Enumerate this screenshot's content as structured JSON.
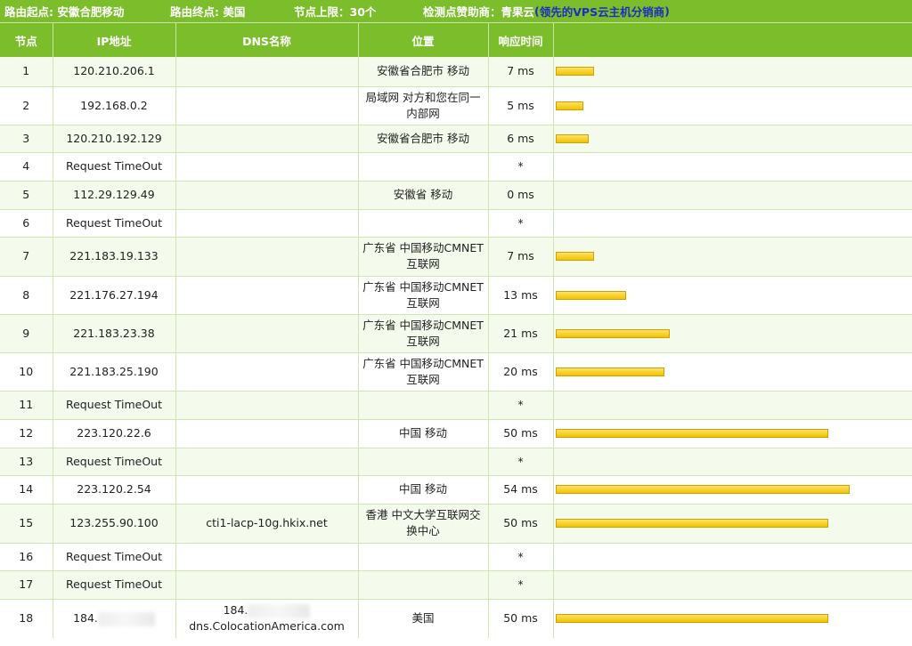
{
  "header_bar": {
    "origin": "路由起点: 安徽合肥移动",
    "destination": "路由终点: 美国",
    "hop_limit": "节点上限：30个",
    "sponsor_prefix": "检测点赞助商：",
    "sponsor_name": "青果云",
    "sponsor_open": "(",
    "sponsor_link": "领先的VPS云主机分销商",
    "sponsor_close": ")"
  },
  "columns": [
    "节点",
    "IP地址",
    "DNS名称",
    "位置",
    "响应时间",
    ""
  ],
  "colors": {
    "header_green": "#7bbd2a",
    "bar_yellow": "#f2c200",
    "link_blue": "#1a2fbf"
  },
  "max_bar_ms": 54,
  "rows": [
    {
      "hop": "1",
      "ip": "120.210.206.1",
      "dns": "",
      "location": "安徽省合肥市 移动",
      "time": "7 ms",
      "ms": 7,
      "h": 33
    },
    {
      "hop": "2",
      "ip": "192.168.0.2",
      "dns": "",
      "location": "局域网 对方和您在同一内部网",
      "time": "5 ms",
      "ms": 5,
      "h": 43
    },
    {
      "hop": "3",
      "ip": "120.210.192.129",
      "dns": "",
      "location": "安徽省合肥市 移动",
      "time": "6 ms",
      "ms": 6,
      "h": 31
    },
    {
      "hop": "4",
      "ip": "Request TimeOut",
      "dns": "",
      "location": "",
      "time": "*",
      "ms": 0,
      "h": 32
    },
    {
      "hop": "5",
      "ip": "112.29.129.49",
      "dns": "",
      "location": "安徽省 移动",
      "time": "0 ms",
      "ms": 0,
      "h": 32
    },
    {
      "hop": "6",
      "ip": "Request TimeOut",
      "dns": "",
      "location": "",
      "time": "*",
      "ms": 0,
      "h": 31
    },
    {
      "hop": "7",
      "ip": "221.183.19.133",
      "dns": "",
      "location": "广东省 中国移动CMNET互联网",
      "time": "7 ms",
      "ms": 7,
      "h": 44
    },
    {
      "hop": "8",
      "ip": "221.176.27.194",
      "dns": "",
      "location": "广东省 中国移动CMNET互联网",
      "time": "13 ms",
      "ms": 13,
      "h": 43
    },
    {
      "hop": "9",
      "ip": "221.183.23.38",
      "dns": "",
      "location": "广东省 中国移动CMNET互联网",
      "time": "21 ms",
      "ms": 21,
      "h": 43
    },
    {
      "hop": "10",
      "ip": "221.183.25.190",
      "dns": "",
      "location": "广东省 中国移动CMNET互联网",
      "time": "20 ms",
      "ms": 20,
      "h": 43
    },
    {
      "hop": "11",
      "ip": "Request TimeOut",
      "dns": "",
      "location": "",
      "time": "*",
      "ms": 0,
      "h": 32
    },
    {
      "hop": "12",
      "ip": "223.120.22.6",
      "dns": "",
      "location": "中国 移动",
      "time": "50 ms",
      "ms": 50,
      "h": 32
    },
    {
      "hop": "13",
      "ip": "Request TimeOut",
      "dns": "",
      "location": "",
      "time": "*",
      "ms": 0,
      "h": 31
    },
    {
      "hop": "14",
      "ip": "223.120.2.54",
      "dns": "",
      "location": "中国 移动",
      "time": "54 ms",
      "ms": 54,
      "h": 32
    },
    {
      "hop": "15",
      "ip": "123.255.90.100",
      "dns": "cti1-lacp-10g.hkix.net",
      "location": "香港 中文大学互联网交换中心",
      "time": "50 ms",
      "ms": 50,
      "h": 44
    },
    {
      "hop": "16",
      "ip": "Request TimeOut",
      "dns": "",
      "location": "",
      "time": "*",
      "ms": 0,
      "h": 31
    },
    {
      "hop": "17",
      "ip": "Request TimeOut",
      "dns": "",
      "location": "",
      "time": "*",
      "ms": 0,
      "h": 32
    },
    {
      "hop": "18",
      "ip": "184.",
      "ip_redacted": true,
      "dns": "184.",
      "dns_suffix": "dns.ColocationAmerica.com",
      "dns_redacted": true,
      "location": "美国",
      "time": "50 ms",
      "ms": 50,
      "h": 44
    }
  ]
}
